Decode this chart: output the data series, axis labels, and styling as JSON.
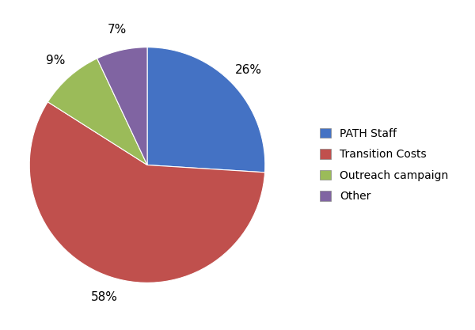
{
  "labels": [
    "PATH Staff",
    "Transition Costs",
    "Outreach campaign",
    "Other"
  ],
  "values": [
    26,
    58,
    9,
    7
  ],
  "colors": [
    "#4472C4",
    "#C0504D",
    "#9BBB59",
    "#8064A2"
  ],
  "background_color": "#FFFFFF",
  "legend_labels": [
    "PATH Staff",
    "Transition Costs",
    "Outreach campaign",
    "Other"
  ],
  "startangle": 90,
  "figsize": [
    6.0,
    4.17
  ],
  "dpi": 100,
  "pct_distance": 1.18,
  "label_fontsize": 11,
  "legend_fontsize": 10
}
